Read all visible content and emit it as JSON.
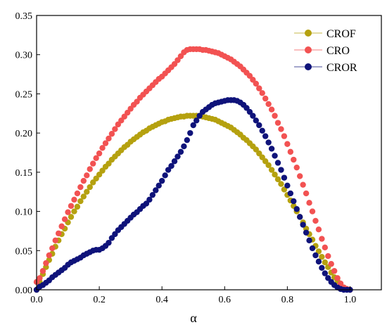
{
  "chart_data": {
    "type": "scatter",
    "title": "",
    "xlabel": "α",
    "ylabel": "",
    "xlim": [
      0.0,
      1.1
    ],
    "ylim": [
      0.0,
      0.35
    ],
    "xticks": [
      "0.0",
      "0.2",
      "0.4",
      "0.6",
      "0.8",
      "1.0"
    ],
    "yticks": [
      "0.00",
      "0.05",
      "0.10",
      "0.15",
      "0.20",
      "0.25",
      "0.30",
      "0.35"
    ],
    "grid": false,
    "legend_position": "top-right",
    "series": [
      {
        "name": "CROF",
        "color": "#b5a10f",
        "x": [
          0.0,
          0.01,
          0.02,
          0.03,
          0.04,
          0.05,
          0.06,
          0.07,
          0.08,
          0.09,
          0.1,
          0.11,
          0.12,
          0.13,
          0.14,
          0.15,
          0.16,
          0.17,
          0.18,
          0.19,
          0.2,
          0.21,
          0.22,
          0.23,
          0.24,
          0.25,
          0.26,
          0.27,
          0.28,
          0.29,
          0.3,
          0.31,
          0.32,
          0.33,
          0.34,
          0.35,
          0.36,
          0.37,
          0.38,
          0.39,
          0.4,
          0.41,
          0.42,
          0.43,
          0.44,
          0.45,
          0.46,
          0.47,
          0.48,
          0.49,
          0.5,
          0.51,
          0.52,
          0.53,
          0.54,
          0.55,
          0.56,
          0.57,
          0.58,
          0.59,
          0.6,
          0.61,
          0.62,
          0.63,
          0.64,
          0.65,
          0.66,
          0.67,
          0.68,
          0.69,
          0.7,
          0.71,
          0.72,
          0.73,
          0.74,
          0.75,
          0.76,
          0.77,
          0.78,
          0.79,
          0.8,
          0.81,
          0.82,
          0.83,
          0.84,
          0.85,
          0.86,
          0.87,
          0.88,
          0.89,
          0.9,
          0.91,
          0.92,
          0.93,
          0.94,
          0.95,
          0.96,
          0.97,
          0.98,
          0.99,
          1.0
        ],
        "y": [
          0.0,
          0.01,
          0.02,
          0.029,
          0.038,
          0.046,
          0.055,
          0.063,
          0.071,
          0.078,
          0.086,
          0.093,
          0.1,
          0.106,
          0.113,
          0.119,
          0.125,
          0.131,
          0.137,
          0.142,
          0.147,
          0.152,
          0.157,
          0.161,
          0.166,
          0.17,
          0.174,
          0.178,
          0.182,
          0.185,
          0.189,
          0.192,
          0.195,
          0.198,
          0.201,
          0.203,
          0.206,
          0.208,
          0.21,
          0.212,
          0.214,
          0.215,
          0.217,
          0.218,
          0.219,
          0.22,
          0.221,
          0.221,
          0.222,
          0.222,
          0.222,
          0.222,
          0.222,
          0.221,
          0.22,
          0.219,
          0.218,
          0.217,
          0.215,
          0.213,
          0.211,
          0.209,
          0.207,
          0.204,
          0.201,
          0.198,
          0.194,
          0.191,
          0.187,
          0.183,
          0.179,
          0.174,
          0.169,
          0.164,
          0.159,
          0.153,
          0.147,
          0.141,
          0.135,
          0.128,
          0.121,
          0.114,
          0.107,
          0.1,
          0.093,
          0.086,
          0.078,
          0.071,
          0.064,
          0.056,
          0.049,
          0.042,
          0.035,
          0.029,
          0.022,
          0.016,
          0.011,
          0.006,
          0.003,
          0.001,
          0.0
        ]
      },
      {
        "name": "CRO",
        "color": "#f25252",
        "x": [
          0.0,
          0.01,
          0.02,
          0.03,
          0.04,
          0.05,
          0.06,
          0.07,
          0.08,
          0.09,
          0.1,
          0.11,
          0.12,
          0.13,
          0.14,
          0.15,
          0.16,
          0.17,
          0.18,
          0.19,
          0.2,
          0.21,
          0.22,
          0.23,
          0.24,
          0.25,
          0.26,
          0.27,
          0.28,
          0.29,
          0.3,
          0.31,
          0.32,
          0.33,
          0.34,
          0.35,
          0.36,
          0.37,
          0.38,
          0.39,
          0.4,
          0.41,
          0.42,
          0.43,
          0.44,
          0.45,
          0.46,
          0.47,
          0.48,
          0.49,
          0.5,
          0.51,
          0.52,
          0.53,
          0.54,
          0.55,
          0.56,
          0.57,
          0.58,
          0.59,
          0.6,
          0.61,
          0.62,
          0.63,
          0.64,
          0.65,
          0.66,
          0.67,
          0.68,
          0.69,
          0.7,
          0.71,
          0.72,
          0.73,
          0.74,
          0.75,
          0.76,
          0.77,
          0.78,
          0.79,
          0.8,
          0.81,
          0.82,
          0.83,
          0.84,
          0.85,
          0.86,
          0.87,
          0.88,
          0.89,
          0.9,
          0.91,
          0.92,
          0.93,
          0.94,
          0.95,
          0.96,
          0.97,
          0.98,
          0.99,
          1.0
        ],
        "y": [
          0.01,
          0.015,
          0.024,
          0.034,
          0.044,
          0.053,
          0.063,
          0.072,
          0.081,
          0.09,
          0.099,
          0.107,
          0.115,
          0.123,
          0.131,
          0.139,
          0.146,
          0.154,
          0.161,
          0.168,
          0.174,
          0.181,
          0.187,
          0.193,
          0.199,
          0.205,
          0.211,
          0.216,
          0.221,
          0.226,
          0.231,
          0.236,
          0.24,
          0.245,
          0.249,
          0.253,
          0.257,
          0.261,
          0.265,
          0.269,
          0.272,
          0.276,
          0.28,
          0.284,
          0.288,
          0.293,
          0.298,
          0.303,
          0.306,
          0.307,
          0.307,
          0.307,
          0.307,
          0.306,
          0.306,
          0.305,
          0.304,
          0.303,
          0.302,
          0.3,
          0.298,
          0.296,
          0.294,
          0.291,
          0.288,
          0.285,
          0.281,
          0.277,
          0.273,
          0.268,
          0.263,
          0.257,
          0.251,
          0.244,
          0.237,
          0.23,
          0.222,
          0.213,
          0.205,
          0.196,
          0.186,
          0.176,
          0.166,
          0.156,
          0.145,
          0.134,
          0.123,
          0.111,
          0.1,
          0.088,
          0.077,
          0.065,
          0.054,
          0.043,
          0.033,
          0.024,
          0.015,
          0.008,
          0.003,
          0.001,
          0.0
        ]
      },
      {
        "name": "CROR",
        "color": "#0f137a",
        "x": [
          0.0,
          0.01,
          0.02,
          0.03,
          0.04,
          0.05,
          0.06,
          0.07,
          0.08,
          0.09,
          0.1,
          0.11,
          0.12,
          0.13,
          0.14,
          0.15,
          0.16,
          0.17,
          0.18,
          0.19,
          0.2,
          0.21,
          0.22,
          0.23,
          0.24,
          0.25,
          0.26,
          0.27,
          0.28,
          0.29,
          0.3,
          0.31,
          0.32,
          0.33,
          0.34,
          0.35,
          0.36,
          0.37,
          0.38,
          0.39,
          0.4,
          0.41,
          0.42,
          0.43,
          0.44,
          0.45,
          0.46,
          0.47,
          0.48,
          0.49,
          0.5,
          0.51,
          0.52,
          0.53,
          0.54,
          0.55,
          0.56,
          0.57,
          0.58,
          0.59,
          0.6,
          0.61,
          0.62,
          0.63,
          0.64,
          0.65,
          0.66,
          0.67,
          0.68,
          0.69,
          0.7,
          0.71,
          0.72,
          0.73,
          0.74,
          0.75,
          0.76,
          0.77,
          0.78,
          0.79,
          0.8,
          0.81,
          0.82,
          0.83,
          0.84,
          0.85,
          0.86,
          0.87,
          0.88,
          0.89,
          0.9,
          0.91,
          0.92,
          0.93,
          0.94,
          0.95,
          0.96,
          0.97,
          0.98,
          0.99,
          1.0
        ],
        "y": [
          0.0,
          0.004,
          0.006,
          0.009,
          0.012,
          0.016,
          0.019,
          0.022,
          0.025,
          0.028,
          0.032,
          0.035,
          0.037,
          0.039,
          0.041,
          0.044,
          0.046,
          0.048,
          0.05,
          0.051,
          0.051,
          0.053,
          0.056,
          0.06,
          0.066,
          0.071,
          0.076,
          0.08,
          0.084,
          0.088,
          0.092,
          0.096,
          0.099,
          0.103,
          0.107,
          0.11,
          0.115,
          0.121,
          0.127,
          0.133,
          0.139,
          0.146,
          0.153,
          0.158,
          0.164,
          0.17,
          0.176,
          0.183,
          0.191,
          0.2,
          0.21,
          0.216,
          0.222,
          0.227,
          0.23,
          0.233,
          0.236,
          0.238,
          0.239,
          0.24,
          0.241,
          0.242,
          0.242,
          0.242,
          0.241,
          0.239,
          0.236,
          0.232,
          0.227,
          0.222,
          0.216,
          0.21,
          0.203,
          0.196,
          0.188,
          0.18,
          0.171,
          0.162,
          0.153,
          0.143,
          0.133,
          0.123,
          0.113,
          0.103,
          0.093,
          0.083,
          0.073,
          0.063,
          0.053,
          0.044,
          0.036,
          0.028,
          0.021,
          0.015,
          0.01,
          0.006,
          0.003,
          0.001,
          0.0,
          0.0,
          0.0
        ]
      }
    ]
  }
}
